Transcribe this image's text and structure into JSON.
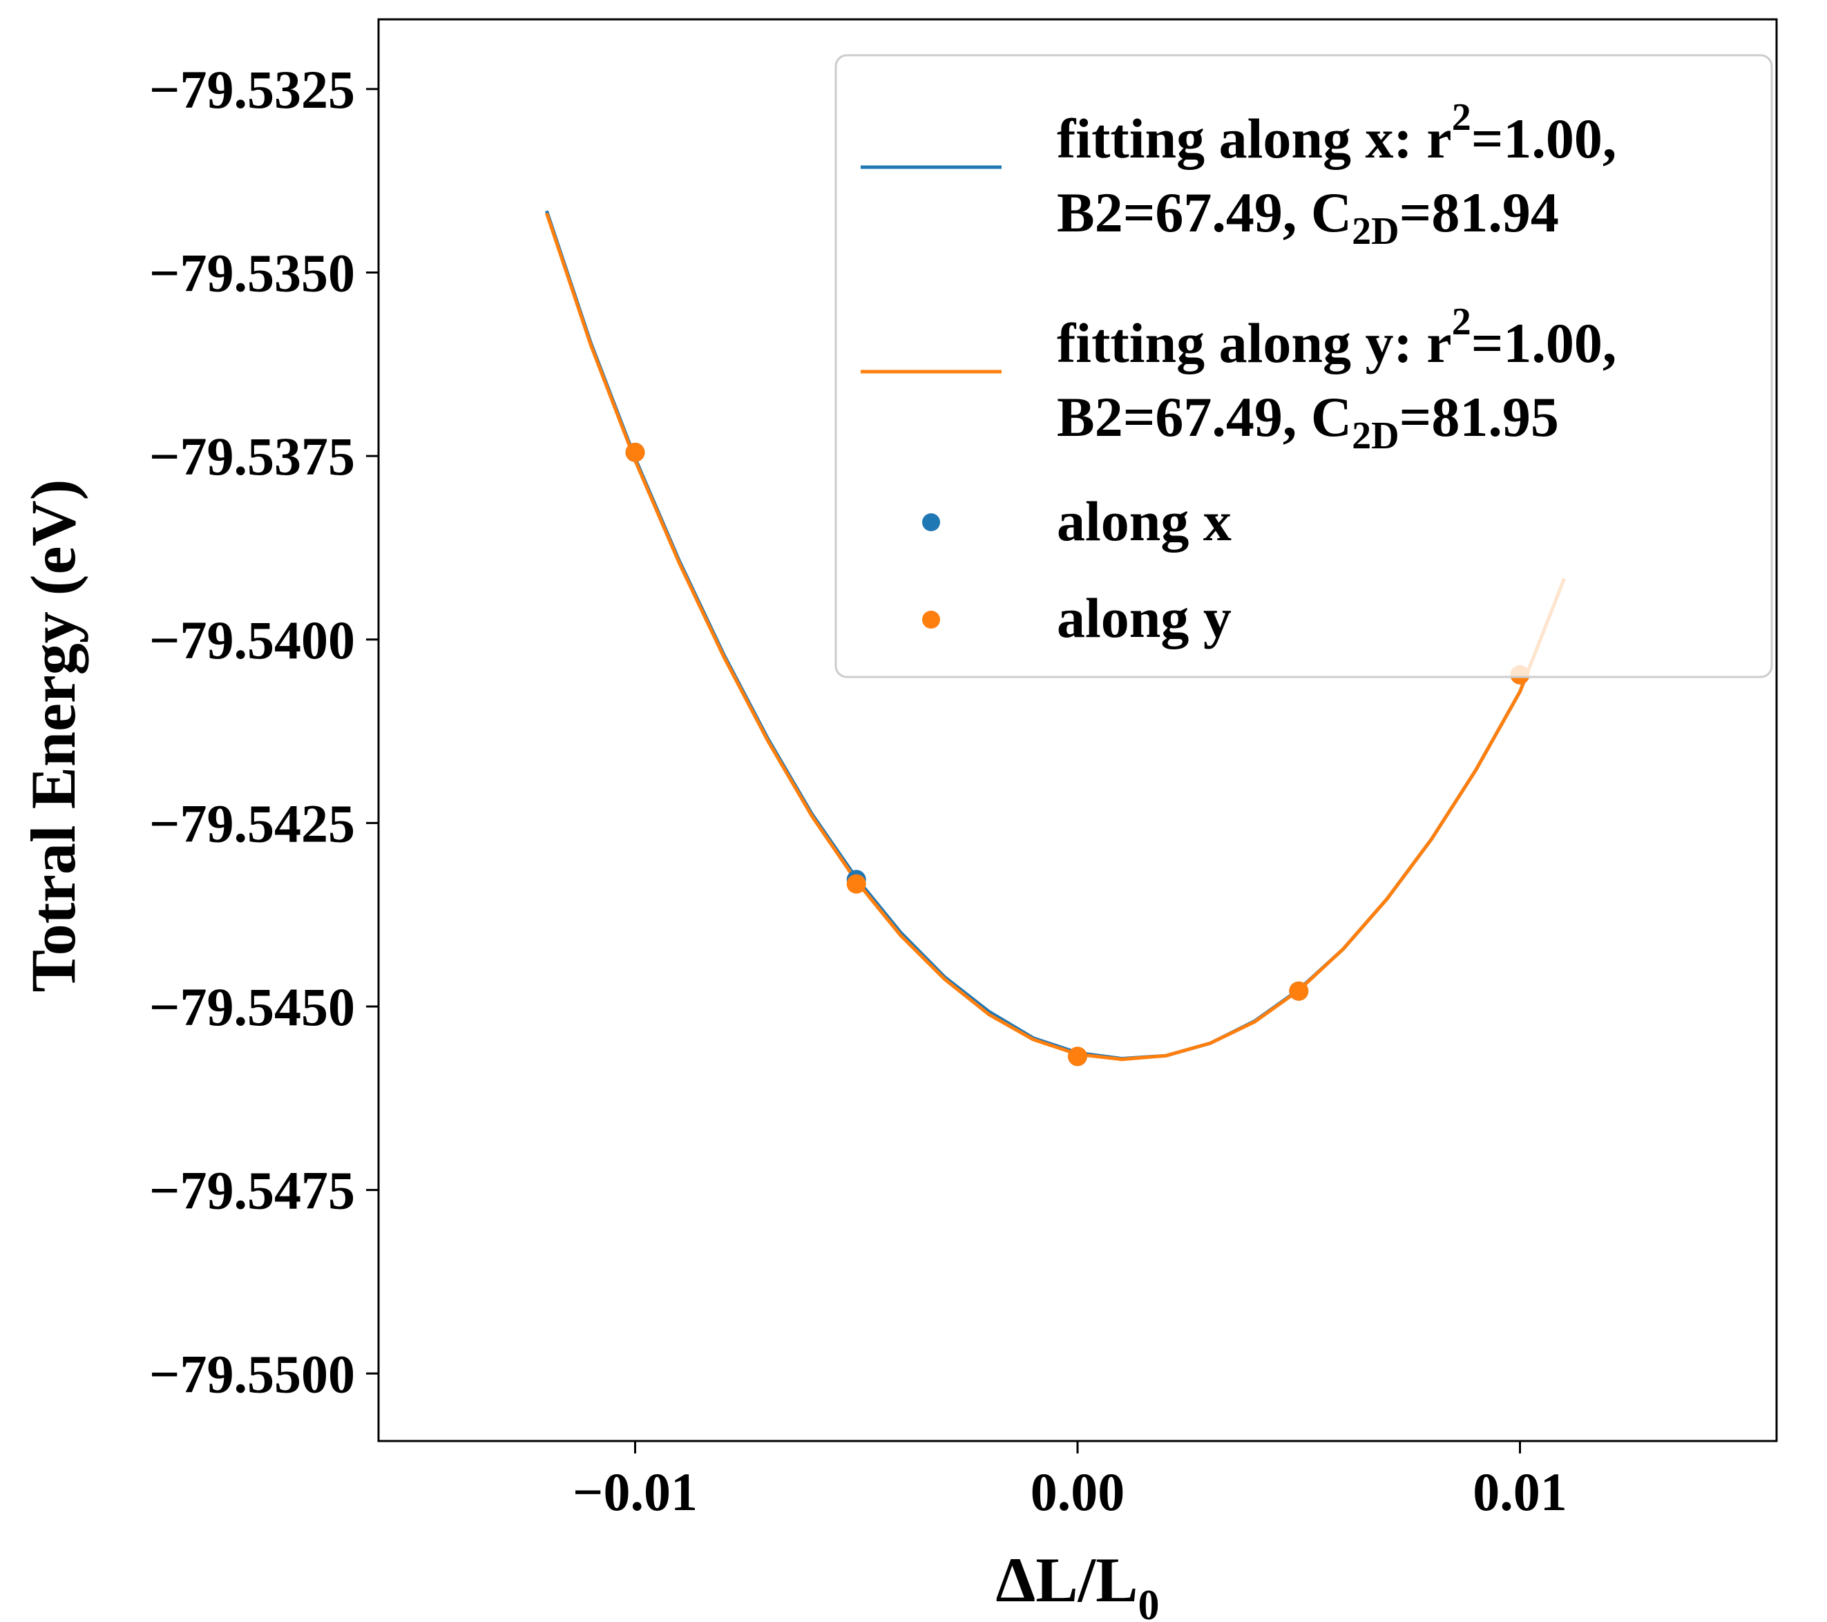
{
  "chart_data": {
    "type": "line",
    "title": "",
    "xlabel": {
      "main": "ΔL/L",
      "sub": "0"
    },
    "ylabel": "Totral Energy (eV)",
    "xlim": [
      -0.0158,
      0.0158
    ],
    "ylim": [
      -79.55092,
      -79.53155
    ],
    "x_ticks": [
      {
        "value": -0.01,
        "label": "−0.01"
      },
      {
        "value": 0.0,
        "label": "0.00"
      },
      {
        "value": 0.01,
        "label": "0.01"
      }
    ],
    "y_ticks": [
      {
        "value": -79.5325,
        "label": "−79.5325"
      },
      {
        "value": -79.535,
        "label": "−79.5350"
      },
      {
        "value": -79.5375,
        "label": "−79.5375"
      },
      {
        "value": -79.54,
        "label": "−79.5400"
      },
      {
        "value": -79.5425,
        "label": "−79.5425"
      },
      {
        "value": -79.545,
        "label": "−79.5450"
      },
      {
        "value": -79.5475,
        "label": "−79.5475"
      },
      {
        "value": -79.55,
        "label": "−79.5500"
      }
    ],
    "grid": false,
    "legend_position": "top-right",
    "fit_x": [
      -0.012,
      -0.011,
      -0.01,
      -0.009,
      -0.008,
      -0.007,
      -0.006,
      -0.005,
      -0.004,
      -0.003,
      -0.002,
      -0.001,
      0.0,
      0.001,
      0.002,
      0.003,
      0.004,
      0.005,
      0.006,
      0.007,
      0.008,
      0.009,
      0.01,
      0.011
    ],
    "series": [
      {
        "name": "fitting along x",
        "kind": "line",
        "color": "#1f77b4",
        "legend": {
          "line1": "fitting along x: r",
          "sup": "2",
          "line1_end": "=1.00,",
          "line2_start": "B2=67.49, C",
          "sub": "2D",
          "line2_end": "=81.94"
        },
        "y": [
          -79.53416,
          -79.53596,
          -79.53753,
          -79.53893,
          -79.5402,
          -79.54135,
          -79.54238,
          -79.54325,
          -79.54399,
          -79.5446,
          -79.54507,
          -79.54543,
          -79.54563,
          -79.54571,
          -79.54567,
          -79.5455,
          -79.5452,
          -79.54477,
          -79.54422,
          -79.54353,
          -79.54272,
          -79.54178,
          -79.54071,
          -79.53917
        ]
      },
      {
        "name": "fitting along y",
        "kind": "line",
        "color": "#ff7f0e",
        "legend": {
          "line1": "fitting along y: r",
          "sup": "2",
          "line1_end": "=1.00,",
          "line2_start": "B2=67.49, C",
          "sub": "2D",
          "line2_end": "=81.95"
        },
        "y": [
          -79.53419,
          -79.53599,
          -79.53756,
          -79.53896,
          -79.54023,
          -79.54138,
          -79.54241,
          -79.54329,
          -79.54403,
          -79.54463,
          -79.54511,
          -79.54545,
          -79.54565,
          -79.54572,
          -79.54567,
          -79.5455,
          -79.54521,
          -79.54478,
          -79.54422,
          -79.54353,
          -79.54272,
          -79.54178,
          -79.54071,
          -79.53917
        ]
      },
      {
        "name": "along x",
        "kind": "scatter",
        "color": "#1f77b4",
        "legend_label": "along x",
        "x": [
          -0.01,
          -0.005,
          0.0,
          0.005,
          0.01
        ],
        "y": [
          -79.53745,
          -79.54327,
          -79.54568,
          -79.54479,
          -79.54048
        ]
      },
      {
        "name": "along y",
        "kind": "scatter",
        "color": "#ff7f0e",
        "legend_label": "along y",
        "x": [
          -0.01,
          -0.005,
          0.0,
          0.005,
          0.01
        ],
        "y": [
          -79.53745,
          -79.54333,
          -79.54568,
          -79.54479,
          -79.54048
        ]
      }
    ]
  }
}
